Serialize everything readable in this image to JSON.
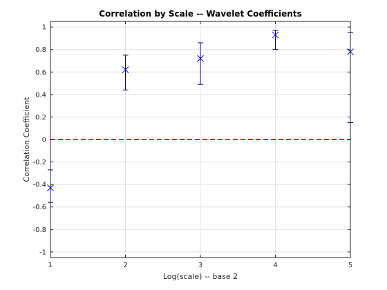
{
  "chart_data": {
    "type": "scatter",
    "title": "Correlation by Scale -- Wavelet Coefficients",
    "xlabel": "Log(scale) -- base 2",
    "ylabel": "Correlation Coefficient",
    "xlim": [
      1,
      5
    ],
    "ylim": [
      -1.05,
      1.05
    ],
    "xticks": [
      "1",
      "2",
      "3",
      "4",
      "5"
    ],
    "xtick_values": [
      1,
      2,
      3,
      4,
      5
    ],
    "yticks": [
      "-1",
      "-0.8",
      "-0.6",
      "-0.4",
      "-0.2",
      "0",
      "0.2",
      "0.4",
      "0.6",
      "0.8",
      "1"
    ],
    "ytick_values": [
      -1,
      -0.8,
      -0.6,
      -0.4,
      -0.2,
      0,
      0.2,
      0.4,
      0.6,
      0.8,
      1
    ],
    "grid": true,
    "marker": "x",
    "series": [
      {
        "x": [
          1,
          2,
          3,
          4,
          5
        ],
        "y": [
          -0.43,
          0.62,
          0.72,
          0.93,
          0.78
        ],
        "lower": [
          -0.56,
          0.44,
          0.49,
          0.8,
          0.15
        ],
        "upper": [
          -0.27,
          0.75,
          0.86,
          0.97,
          0.95
        ],
        "color": "#0000ff"
      }
    ],
    "reference_line": {
      "y": 0,
      "color": "#e00000",
      "style": "dashed"
    },
    "colors": {
      "grid": "#e0e0e0",
      "axes": "#262626",
      "errorbar": "#000080"
    }
  }
}
